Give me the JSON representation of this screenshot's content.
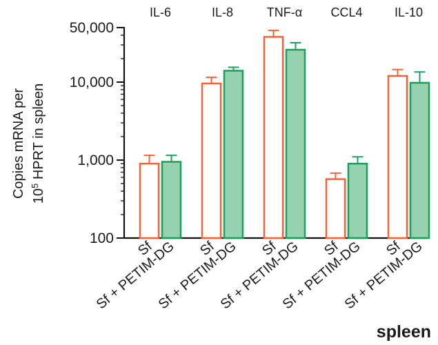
{
  "chart_data": {
    "type": "bar",
    "ylabel_line1": "Copies mRNA per",
    "ylabel_line2_base": "10",
    "ylabel_line2_exp": "5",
    "ylabel_line2_rest": " HPRT in spleen",
    "yscale": "log",
    "ylim": [
      100,
      50000
    ],
    "yticks": [
      {
        "value": 100,
        "label": "100"
      },
      {
        "value": 1000,
        "label": "1,000"
      },
      {
        "value": 10000,
        "label": "10,000"
      },
      {
        "value": 50000,
        "label": "50,000"
      }
    ],
    "corner_label": "spleen",
    "groups": [
      {
        "label": "IL-6",
        "bars": [
          {
            "category": "Sf",
            "value": 900,
            "error_high": 1150
          },
          {
            "category": "Sf + PETIM-DG",
            "value": 950,
            "error_high": 1150
          }
        ]
      },
      {
        "label": "IL-8",
        "bars": [
          {
            "category": "Sf",
            "value": 9600,
            "error_high": 11500
          },
          {
            "category": "Sf + PETIM-DG",
            "value": 14000,
            "error_high": 15500
          }
        ]
      },
      {
        "label": "TNF-α",
        "bars": [
          {
            "category": "Sf",
            "value": 38000,
            "error_high": 46000
          },
          {
            "category": "Sf + PETIM-DG",
            "value": 26000,
            "error_high": 32000
          }
        ]
      },
      {
        "label": "CCL4",
        "bars": [
          {
            "category": "Sf",
            "value": 570,
            "error_high": 680
          },
          {
            "category": "Sf + PETIM-DG",
            "value": 900,
            "error_high": 1100
          }
        ]
      },
      {
        "label": "IL-10",
        "bars": [
          {
            "category": "Sf",
            "value": 12000,
            "error_high": 14500
          },
          {
            "category": "Sf + PETIM-DG",
            "value": 9800,
            "error_high": 13500
          }
        ]
      }
    ],
    "series_style": [
      {
        "category": "Sf",
        "fill": "#ffffff",
        "stroke": "#f0643c"
      },
      {
        "category": "Sf + PETIM-DG",
        "fill": "#96d2b0",
        "stroke": "#1e9e5a"
      }
    ]
  }
}
